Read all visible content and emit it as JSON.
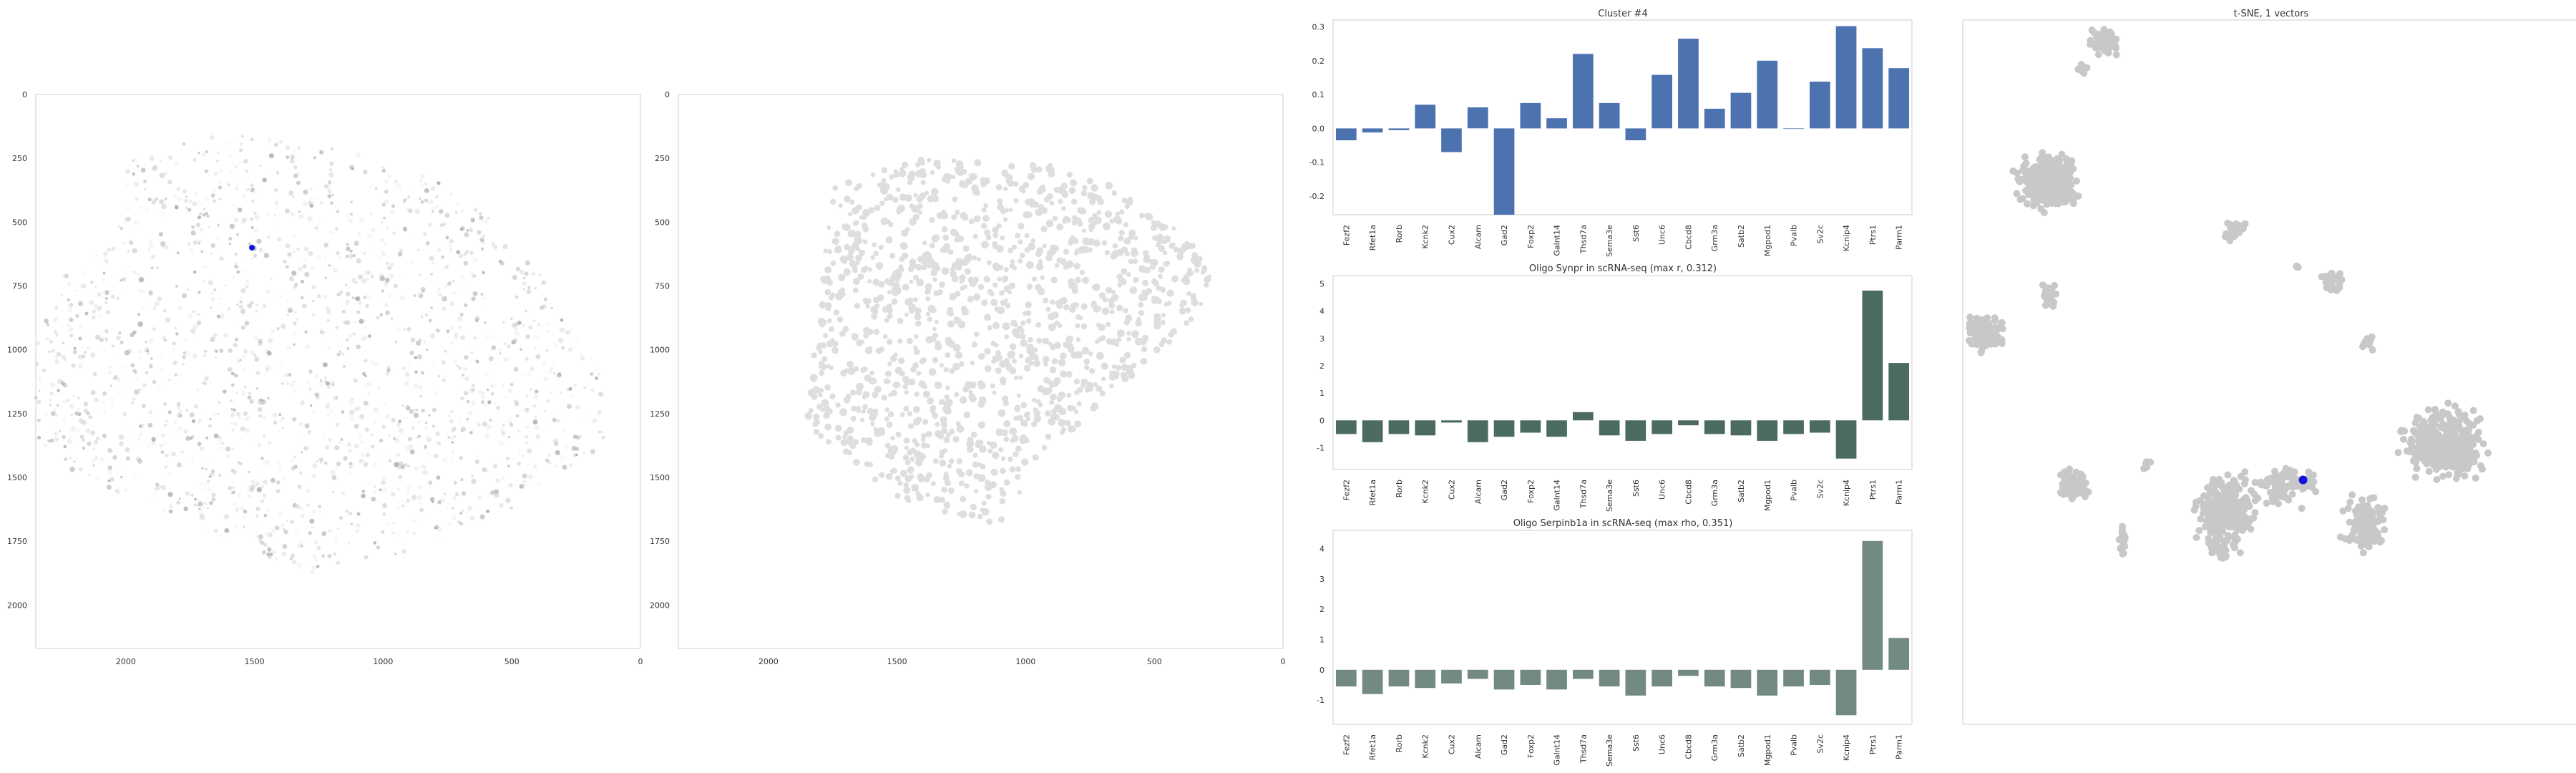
{
  "colors": {
    "bar1": "#4c72b0",
    "bar2": "#4b6b62",
    "bar3": "#728a83",
    "tsne_points": "#c8c8c8",
    "spatial_points": "#dedede",
    "marker": "#1414d8"
  },
  "chart_data": [
    {
      "type": "scatter",
      "title": "",
      "x_ticks": [
        "2000",
        "1500",
        "1000",
        "500",
        "0"
      ],
      "y_ticks": [
        "0",
        "250",
        "500",
        "750",
        "1000",
        "1250",
        "1500",
        "1750",
        "2000"
      ],
      "xlim": [
        2350,
        0
      ],
      "ylim": [
        2170,
        0
      ],
      "grid": false,
      "highlight": {
        "x": 1510,
        "y": 600
      }
    },
    {
      "type": "scatter",
      "title": "",
      "x_ticks": [
        "2000",
        "1500",
        "1000",
        "500",
        "0"
      ],
      "y_ticks": [
        "0",
        "250",
        "500",
        "750",
        "1000",
        "1250",
        "1500",
        "1750",
        "2000"
      ],
      "xlim": [
        2350,
        0
      ],
      "ylim": [
        2170,
        0
      ],
      "grid": false
    },
    {
      "type": "bar",
      "title": "Cluster #4",
      "categories": [
        "Fezf2",
        "Rfet1a",
        "Rorb",
        "Kcnk2",
        "Cux2",
        "Alcam",
        "Gad2",
        "Foxp2",
        "Galnt14",
        "Thsd7a",
        "Sema3e",
        "Sst6",
        "Unc6",
        "Cbcd8",
        "Grm3a",
        "Satb2",
        "Mgpod1",
        "Pvalb",
        "Sv2c",
        "Kcnip4",
        "Ptrs1",
        "Parm1"
      ],
      "values": [
        -0.035,
        -0.012,
        -0.005,
        0.07,
        -0.07,
        0.062,
        -0.255,
        0.075,
        0.03,
        0.22,
        0.075,
        -0.035,
        0.158,
        0.265,
        0.058,
        0.105,
        0.2,
        0.0,
        0.138,
        0.302,
        0.237,
        0.178
      ],
      "yticks": [
        "-0.2",
        "-0.1",
        "0.0",
        "0.1",
        "0.2",
        "0.3"
      ],
      "ylim": [
        -0.255,
        0.32
      ],
      "grid": false
    },
    {
      "type": "bar",
      "title": "Oligo Synpr in scRNA-seq (max r, 0.312)",
      "categories": [
        "Fezf2",
        "Rfet1a",
        "Rorb",
        "Kcnk2",
        "Cux2",
        "Alcam",
        "Gad2",
        "Foxp2",
        "Galnt14",
        "Thsd7a",
        "Sema3e",
        "Sst6",
        "Unc6",
        "Cbcd8",
        "Grm3a",
        "Satb2",
        "Mgpod1",
        "Pvalb",
        "Sv2c",
        "Kcnip4",
        "Ptrs1",
        "Parm1"
      ],
      "values": [
        -0.5,
        -0.8,
        -0.5,
        -0.55,
        -0.08,
        -0.8,
        -0.6,
        -0.45,
        -0.6,
        0.3,
        -0.55,
        -0.75,
        -0.5,
        -0.18,
        -0.5,
        -0.55,
        -0.75,
        -0.5,
        -0.45,
        -1.4,
        4.75,
        2.1
      ],
      "yticks": [
        "-1",
        "0",
        "1",
        "2",
        "3",
        "4",
        "5"
      ],
      "ylim": [
        -1.8,
        5.3
      ],
      "grid": false
    },
    {
      "type": "bar",
      "title": "Oligo Serpinb1a in scRNA-seq (max rho, 0.351)",
      "categories": [
        "Fezf2",
        "Rfet1a",
        "Rorb",
        "Kcnk2",
        "Cux2",
        "Alcam",
        "Gad2",
        "Foxp2",
        "Galnt14",
        "Thsd7a",
        "Sema3e",
        "Sst6",
        "Unc6",
        "Cbcd8",
        "Grm3a",
        "Satb2",
        "Mgpod1",
        "Pvalb",
        "Sv2c",
        "Kcnip4",
        "Ptrs1",
        "Parm1"
      ],
      "values": [
        -0.55,
        -0.8,
        -0.55,
        -0.6,
        -0.45,
        -0.3,
        -0.65,
        -0.5,
        -0.65,
        -0.3,
        -0.55,
        -0.85,
        -0.55,
        -0.2,
        -0.55,
        -0.6,
        -0.85,
        -0.55,
        -0.5,
        -1.5,
        4.25,
        1.05
      ],
      "yticks": [
        "-1",
        "0",
        "1",
        "2",
        "3",
        "4"
      ],
      "ylim": [
        -1.8,
        4.6
      ],
      "grid": false
    },
    {
      "type": "scatter",
      "title": "t-SNE, 1 vectors",
      "grid": false,
      "highlight": {
        "x": 0.553,
        "y": 0.653
      }
    }
  ]
}
